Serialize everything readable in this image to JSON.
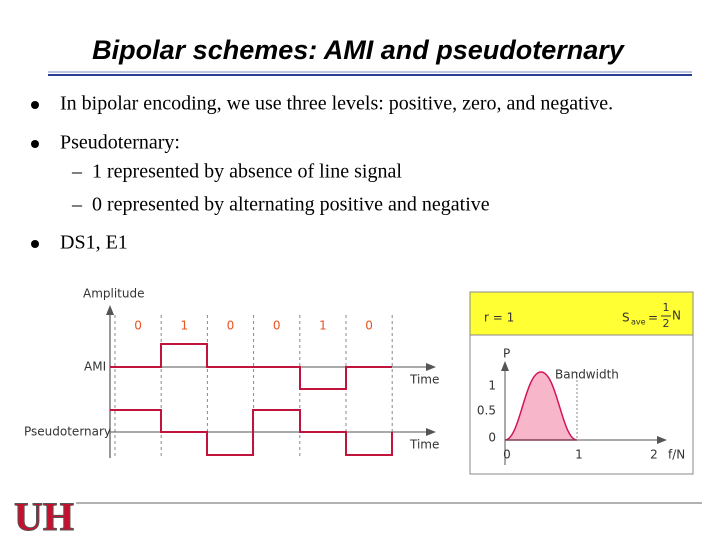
{
  "title": "Bipolar schemes: AMI and pseudoternary",
  "bullets": [
    {
      "text": "In bipolar encoding, we use three levels: positive, zero, and negative."
    },
    {
      "text": "Pseudoternary:",
      "subitems": [
        {
          "dash": "–",
          "text": "1 represented by absence of line signal"
        },
        {
          "dash": "–",
          "text": "0 represented by alternating positive and negative"
        }
      ]
    },
    {
      "text": "DS1, E1"
    }
  ],
  "waveform": {
    "amplitude_label": "Amplitude",
    "bits": [
      "0",
      "1",
      "0",
      "0",
      "1",
      "0"
    ],
    "ami_label": "AMI",
    "pseudoternary_label": "Pseudoternary",
    "time_label": "Time"
  },
  "spectrum": {
    "ratio": "r = 1",
    "s_symbol": "S",
    "s_subscript": "ave",
    "equals": "=",
    "numerator": "1",
    "denominator": "2",
    "s_unit": "N",
    "y_axis_label": "P",
    "y_ticks": [
      "1",
      "0.5",
      "0"
    ],
    "x_ticks": [
      "0",
      "1",
      "2"
    ],
    "x_axis_label": "f/N",
    "bandwidth_label": "Bandwidth"
  },
  "logo": "UH"
}
